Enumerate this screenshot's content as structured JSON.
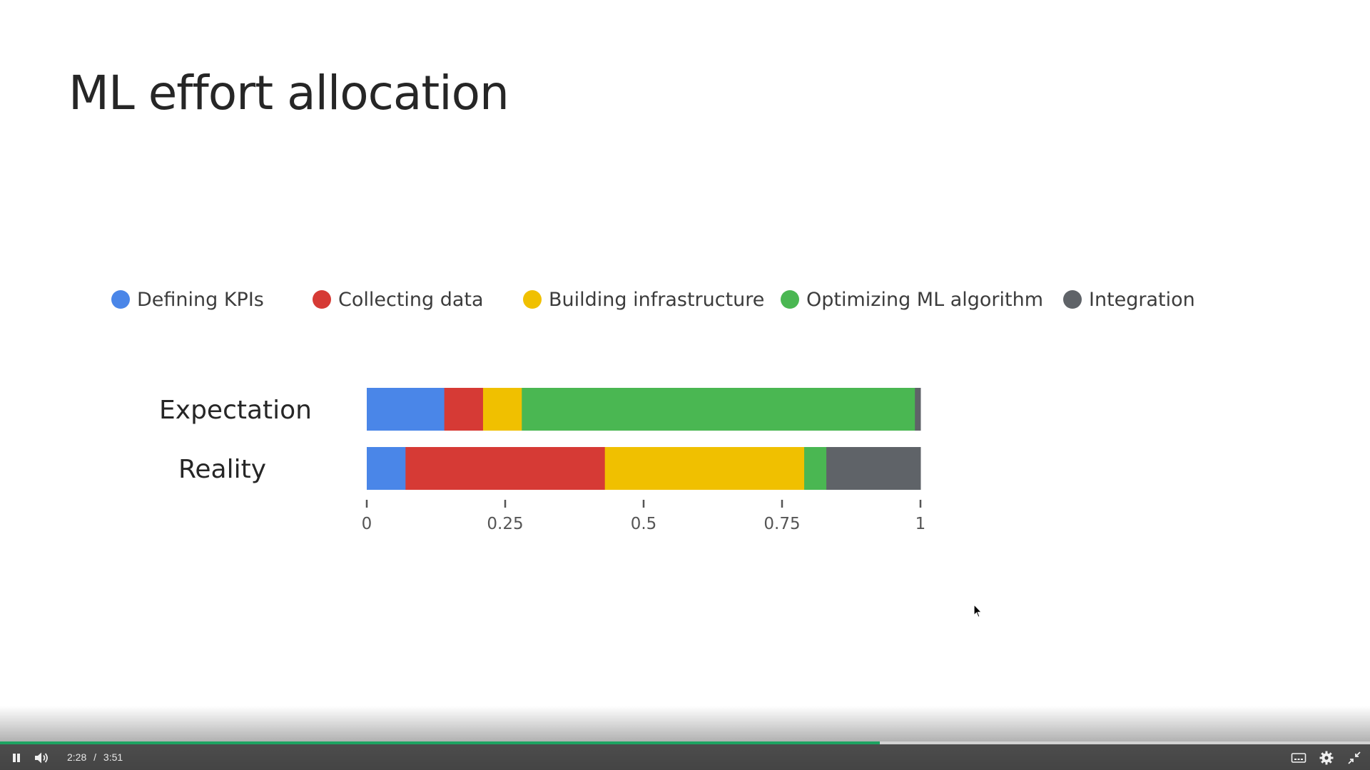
{
  "slide": {
    "title": "ML effort allocation"
  },
  "legend": [
    {
      "label": "Defining KPIs",
      "color": "#4a86e8"
    },
    {
      "label": "Collecting data",
      "color": "#d63a35"
    },
    {
      "label": "Building infrastructure",
      "color": "#f0c000"
    },
    {
      "label": "Optimizing ML algorithm",
      "color": "#4ab752"
    },
    {
      "label": "Integration",
      "color": "#5f6368"
    }
  ],
  "chart_data": {
    "type": "bar",
    "orientation": "horizontal",
    "stacked": true,
    "categories": [
      "Expectation",
      "Reality"
    ],
    "series": [
      {
        "name": "Defining KPIs",
        "values": [
          0.14,
          0.07
        ],
        "color": "#4a86e8"
      },
      {
        "name": "Collecting data",
        "values": [
          0.07,
          0.36
        ],
        "color": "#d63a35"
      },
      {
        "name": "Building infrastructure",
        "values": [
          0.07,
          0.36
        ],
        "color": "#f0c000"
      },
      {
        "name": "Optimizing ML algorithm",
        "values": [
          0.71,
          0.04
        ],
        "color": "#4ab752"
      },
      {
        "name": "Integration",
        "values": [
          0.01,
          0.17
        ],
        "color": "#5f6368"
      }
    ],
    "xlim": [
      0,
      1
    ],
    "xticks": [
      "0",
      "0.25",
      "0.5",
      "0.75",
      "1"
    ],
    "legend_position": "top",
    "grid": false
  },
  "player": {
    "current_time": "2:28",
    "separator": "/",
    "duration": "3:51",
    "progress": 0.642,
    "accent_color": "#1ea362"
  }
}
